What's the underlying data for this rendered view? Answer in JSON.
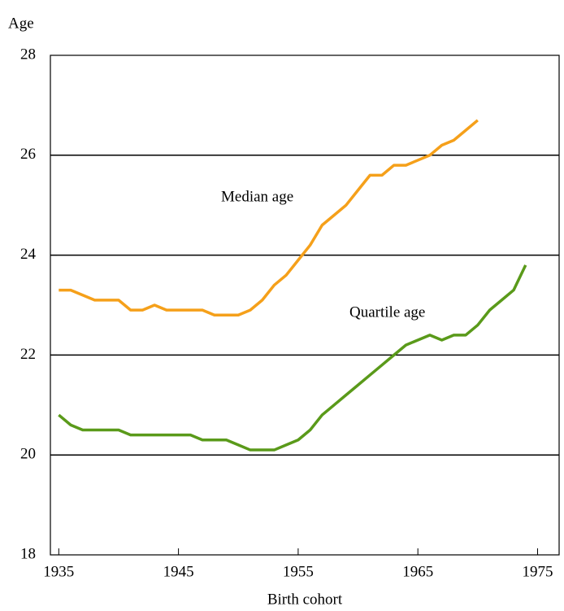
{
  "chart_data": {
    "type": "line",
    "y_label": "Age",
    "x_label": "Birth cohort",
    "annotations": [
      "Median age",
      "Quartile age"
    ],
    "x": [
      1935,
      1936,
      1937,
      1938,
      1939,
      1940,
      1941,
      1942,
      1943,
      1944,
      1945,
      1946,
      1947,
      1948,
      1949,
      1950,
      1951,
      1952,
      1953,
      1954,
      1955,
      1956,
      1957,
      1958,
      1959,
      1960,
      1961,
      1962,
      1963,
      1964,
      1965,
      1966,
      1967,
      1968,
      1969,
      1970,
      1971,
      1972,
      1973,
      1974
    ],
    "series": [
      {
        "name": "Median age",
        "color": "#f5a01a",
        "values": [
          23.3,
          23.3,
          23.2,
          23.1,
          23.1,
          23.1,
          22.9,
          22.9,
          23.0,
          22.9,
          22.9,
          22.9,
          22.9,
          22.8,
          22.8,
          22.8,
          22.9,
          23.1,
          23.4,
          23.6,
          23.9,
          24.2,
          24.6,
          24.8,
          25.0,
          25.3,
          25.6,
          25.6,
          25.8,
          25.8,
          25.9,
          26.0,
          26.2,
          26.3,
          26.5,
          26.7,
          null,
          null,
          null,
          null
        ]
      },
      {
        "name": "Quartile age",
        "color": "#5a9a1a",
        "values": [
          20.8,
          20.6,
          20.5,
          20.5,
          20.5,
          20.5,
          20.4,
          20.4,
          20.4,
          20.4,
          20.4,
          20.4,
          20.3,
          20.3,
          20.3,
          20.2,
          20.1,
          20.1,
          20.1,
          20.2,
          20.3,
          20.5,
          20.8,
          21.0,
          21.2,
          21.4,
          21.6,
          21.8,
          22.0,
          22.2,
          22.3,
          22.4,
          22.3,
          22.4,
          22.4,
          22.6,
          22.9,
          23.1,
          23.3,
          23.8
        ]
      }
    ],
    "xlim": [
      1934.3,
      1976.8
    ],
    "xticks": [
      1935,
      1945,
      1955,
      1965,
      1975
    ],
    "ylim": [
      18,
      28
    ],
    "yticks": [
      18,
      20,
      22,
      24,
      26,
      28
    ],
    "grid": true
  }
}
